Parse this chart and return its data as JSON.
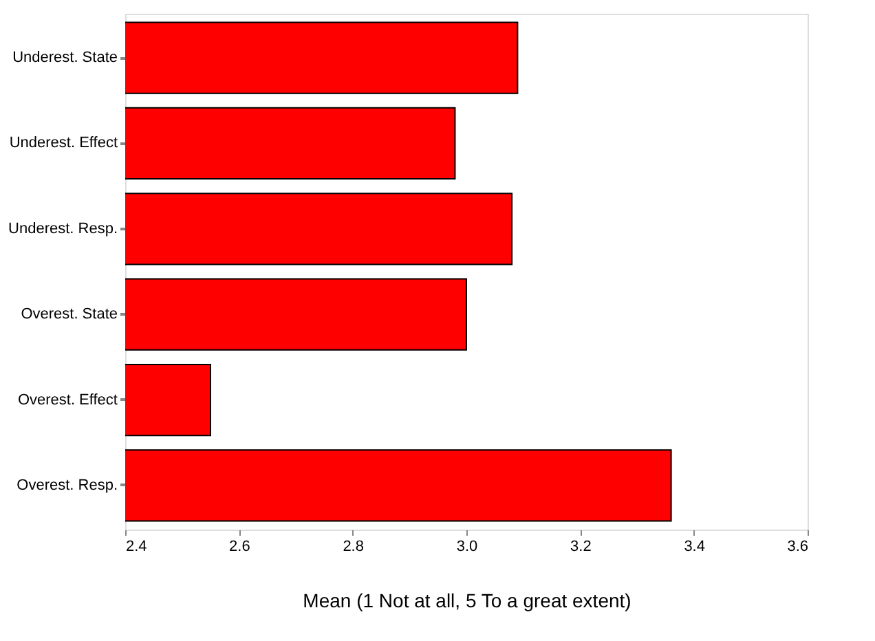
{
  "chart_data": {
    "type": "bar",
    "orientation": "horizontal",
    "xlabel": "Mean (1 Not at all, 5 To a great extent)",
    "categories": [
      "Underest. State",
      "Underest. Effect",
      "Underest. Resp.",
      "Overest. State",
      "Overest. Effect",
      "Overest. Resp."
    ],
    "values": [
      3.09,
      2.98,
      3.08,
      3.0,
      2.55,
      3.36
    ],
    "color": "#ff0000",
    "xlim": [
      2.4,
      3.6
    ],
    "xticks": [
      2.4,
      2.6,
      2.8,
      {
        "value": 3.0,
        "label": "3.0"
      },
      3.2,
      3.4,
      3.6
    ],
    "grid": false
  }
}
